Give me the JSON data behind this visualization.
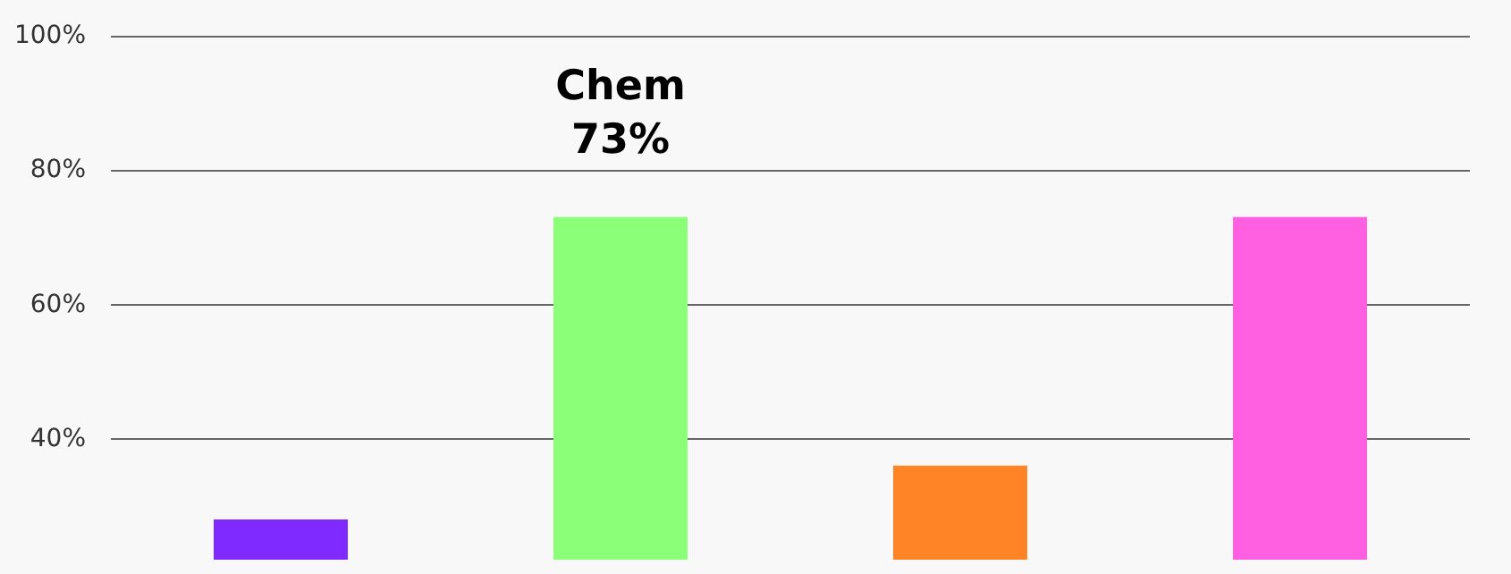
{
  "chart_data": {
    "type": "bar",
    "categories": [
      null,
      null,
      null,
      null
    ],
    "values": [
      28,
      73,
      36,
      73
    ],
    "colors": [
      "#7f2bff",
      "#8cff78",
      "#ff8426",
      "#ff5fe0"
    ],
    "value_labels": [
      null,
      "Chem\n73%",
      null,
      null
    ],
    "ylim": [
      22,
      100
    ],
    "yticks": [
      {
        "value": 40,
        "label": "40%"
      },
      {
        "value": 60,
        "label": "60%"
      },
      {
        "value": 80,
        "label": "80%"
      },
      {
        "value": 100,
        "label": "100%"
      }
    ],
    "grid": "y"
  }
}
